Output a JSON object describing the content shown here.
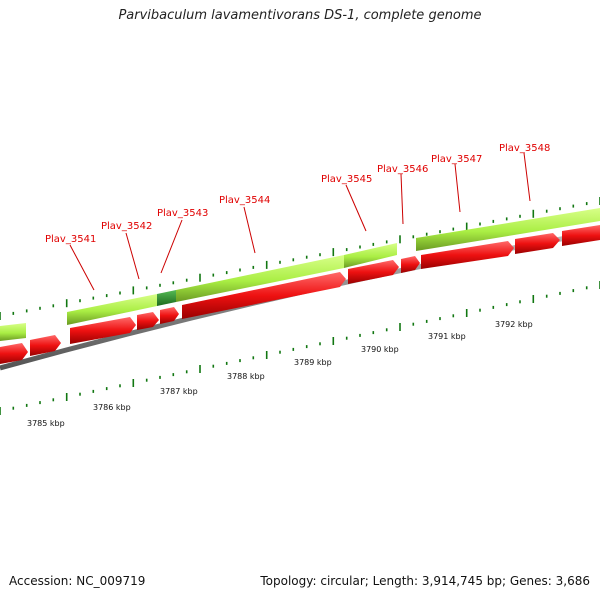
{
  "title": "Parvibaculum lavamentivorans DS-1, complete genome",
  "footer": {
    "accession": "Accession: NC_009719",
    "stats": "Topology: circular; Length: 3,914,745 bp; Genes: 3,686"
  },
  "colors": {
    "forward_gene": "#aaee44",
    "forward_gene_highlight": "#2a8a2a",
    "reverse_gene": "#ee1111",
    "backbone": "#888888",
    "tick": "#117711",
    "label": "#e00000"
  },
  "gene_labels": [
    "Plav_3541",
    "Plav_3542",
    "Plav_3543",
    "Plav_3544",
    "Plav_3545",
    "Plav_3546",
    "Plav_3547",
    "Plav_3548"
  ],
  "kbp_labels": [
    "3785 kbp",
    "3786 kbp",
    "3787 kbp",
    "3788 kbp",
    "3789 kbp",
    "3790 kbp",
    "3791 kbp",
    "3792 kbp"
  ]
}
